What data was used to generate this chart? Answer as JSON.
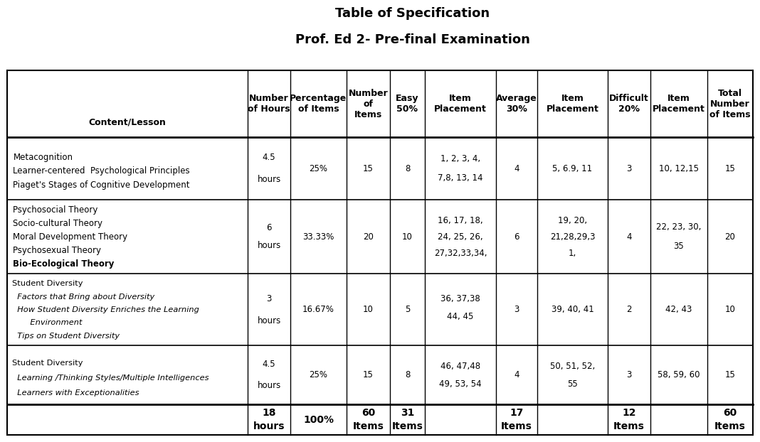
{
  "title1": "Table of Specification",
  "title2": "Prof. Ed 2- Pre-final Examination",
  "col_headers": [
    "Content/Lesson",
    "Number\nof Hours",
    "Percentage\nof Items",
    "Number\nof\nItems",
    "Easy\n50%",
    "Item\nPlacement",
    "Average\n30%",
    "Item\nPlacement",
    "Difficult\n20%",
    "Item\nPlacement",
    "Total\nNumber\nof Items"
  ],
  "bg_color": "#ffffff",
  "text_color": "#000000"
}
